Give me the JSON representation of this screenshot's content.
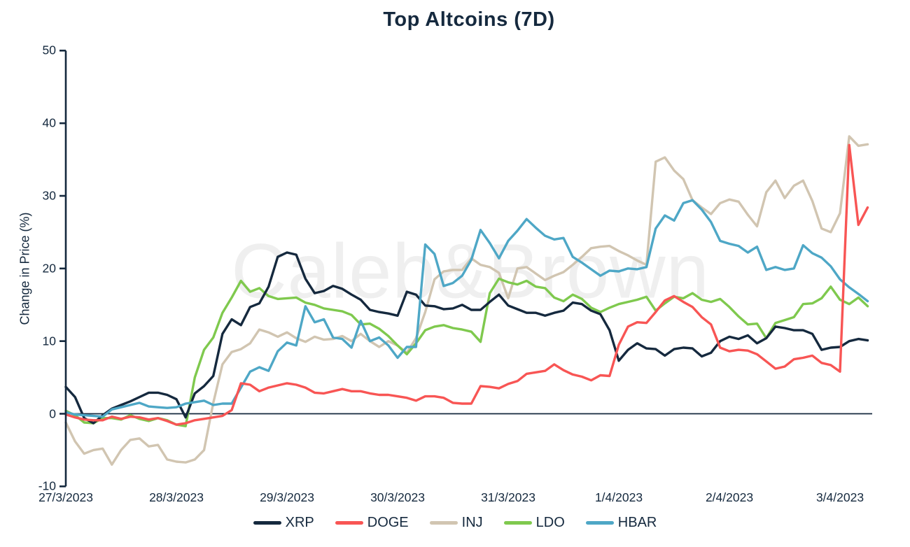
{
  "watermark": "Caleb&Brown",
  "theme": {
    "axis_color": "#15293e",
    "background": "#ffffff",
    "watermark_color": "#efefef"
  },
  "chart_data": {
    "type": "line",
    "title": "Top Altcoins (7D)",
    "xlabel": "",
    "ylabel": "Change in Price (%)",
    "ylim": [
      -10,
      50
    ],
    "grid": false,
    "zero_line": true,
    "legend_position": "bottom",
    "y_ticks": [
      50,
      40,
      30,
      20,
      10,
      0,
      -10
    ],
    "y_tick_labels": [
      "50",
      "40",
      "30",
      "20",
      "10",
      "0",
      "-10"
    ],
    "x_tick_labels": [
      "27/3/2023",
      "28/3/2023",
      "29/3/2023",
      "30/3/2023",
      "31/3/2023",
      "1/4/2023",
      "2/4/2023",
      "3/4/2023"
    ],
    "x_unit_hours": 2,
    "series": [
      {
        "name": "XRP",
        "color": "#15293e",
        "values": [
          3.7,
          2.3,
          -0.6,
          -1.3,
          -0.2,
          0.7,
          1.2,
          1.7,
          2.3,
          2.9,
          2.9,
          2.6,
          2.0,
          -0.5,
          2.8,
          3.8,
          5.2,
          11.0,
          13.0,
          12.2,
          14.7,
          15.2,
          17.5,
          21.6,
          22.2,
          21.9,
          18.6,
          16.6,
          16.9,
          17.6,
          17.2,
          16.4,
          15.7,
          14.3,
          14.0,
          13.8,
          13.5,
          16.8,
          16.4,
          14.9,
          14.8,
          14.4,
          14.5,
          15.0,
          14.3,
          14.3,
          15.4,
          16.4,
          14.9,
          14.4,
          13.9,
          13.9,
          13.5,
          13.9,
          14.2,
          15.3,
          15.1,
          14.2,
          13.7,
          11.5,
          7.3,
          8.8,
          9.7,
          9.0,
          8.9,
          8.0,
          8.9,
          9.1,
          9.0,
          7.9,
          8.4,
          10.0,
          10.6,
          10.3,
          10.8,
          9.7,
          10.4,
          12.0,
          11.8,
          11.5,
          11.5,
          11.0,
          8.8,
          9.1,
          9.2,
          10.0,
          10.3,
          10.1
        ]
      },
      {
        "name": "DOGE",
        "color": "#f85554",
        "values": [
          -0.1,
          -0.5,
          -0.8,
          -0.9,
          -0.9,
          -0.4,
          -0.7,
          -0.4,
          -0.5,
          -0.8,
          -0.6,
          -1.0,
          -1.5,
          -1.3,
          -0.9,
          -0.7,
          -0.5,
          -0.3,
          0.5,
          4.2,
          4.0,
          3.1,
          3.6,
          3.9,
          4.2,
          4.0,
          3.6,
          2.9,
          2.8,
          3.1,
          3.4,
          3.1,
          3.1,
          2.8,
          2.6,
          2.6,
          2.4,
          2.2,
          1.8,
          2.4,
          2.4,
          2.2,
          1.5,
          1.4,
          1.4,
          3.8,
          3.7,
          3.5,
          4.1,
          4.5,
          5.5,
          5.7,
          5.9,
          6.8,
          6.0,
          5.4,
          5.1,
          4.6,
          5.3,
          5.2,
          9.5,
          12.0,
          12.6,
          12.5,
          14.0,
          15.6,
          16.2,
          15.4,
          14.7,
          13.3,
          12.3,
          9.1,
          8.6,
          8.8,
          8.7,
          8.2,
          7.2,
          6.2,
          6.5,
          7.5,
          7.7,
          8.0,
          7.0,
          6.7,
          5.8,
          37.0,
          26.0,
          28.4
        ]
      },
      {
        "name": "INJ",
        "color": "#d1c5b1",
        "values": [
          -1.2,
          -3.8,
          -5.5,
          -5.0,
          -4.8,
          -7.0,
          -5.0,
          -3.6,
          -3.4,
          -4.5,
          -4.3,
          -6.3,
          -6.6,
          -6.7,
          -6.3,
          -5.0,
          1.5,
          6.8,
          8.5,
          8.9,
          9.7,
          11.6,
          11.2,
          10.6,
          11.2,
          10.4,
          9.9,
          10.6,
          10.2,
          10.3,
          10.7,
          10.0,
          11.0,
          10.0,
          9.2,
          10.0,
          9.4,
          8.4,
          10.4,
          14.0,
          18.5,
          19.6,
          19.8,
          19.8,
          21.4,
          20.5,
          20.2,
          19.4,
          15.9,
          20.0,
          20.2,
          19.3,
          18.4,
          19.0,
          19.5,
          20.5,
          21.6,
          22.8,
          23.0,
          23.1,
          22.4,
          21.8,
          21.1,
          20.5,
          34.7,
          35.3,
          33.5,
          32.3,
          29.4,
          28.4,
          27.5,
          29.0,
          29.5,
          29.2,
          27.4,
          25.8,
          30.5,
          32.1,
          29.7,
          31.4,
          32.1,
          29.3,
          25.5,
          25.0,
          27.6,
          38.2,
          36.9,
          37.1
        ]
      },
      {
        "name": "LDO",
        "color": "#7fc94e",
        "values": [
          0.4,
          -0.2,
          -1.2,
          -1.3,
          -0.6,
          -0.6,
          -0.8,
          -0.2,
          -0.7,
          -1.0,
          -0.6,
          -0.9,
          -1.5,
          -1.7,
          5.0,
          8.8,
          10.5,
          13.9,
          16.0,
          18.3,
          16.8,
          17.3,
          16.2,
          15.8,
          15.9,
          16.0,
          15.3,
          15.0,
          14.5,
          14.3,
          14.1,
          13.6,
          12.3,
          12.4,
          11.7,
          10.7,
          9.4,
          8.2,
          9.7,
          11.5,
          12.0,
          12.2,
          11.8,
          11.6,
          11.3,
          9.9,
          16.6,
          18.6,
          18.1,
          17.8,
          18.3,
          17.5,
          17.3,
          16.0,
          15.5,
          16.4,
          15.8,
          14.6,
          14.0,
          14.6,
          15.1,
          15.4,
          15.7,
          16.1,
          14.2,
          15.2,
          16.1,
          15.9,
          16.6,
          15.7,
          15.4,
          15.8,
          14.7,
          13.4,
          12.3,
          12.4,
          10.4,
          12.5,
          12.9,
          13.3,
          15.1,
          15.2,
          15.9,
          17.5,
          15.7,
          15.1,
          16.0,
          14.8
        ]
      },
      {
        "name": "HBAR",
        "color": "#4ea7c6",
        "values": [
          0.2,
          -0.1,
          -0.2,
          -0.3,
          -0.4,
          0.6,
          0.9,
          1.2,
          1.5,
          1.0,
          0.9,
          0.8,
          0.9,
          1.4,
          1.6,
          1.8,
          1.2,
          1.4,
          1.4,
          3.6,
          5.8,
          6.4,
          5.9,
          8.6,
          9.8,
          9.4,
          14.8,
          12.6,
          13.0,
          10.5,
          10.3,
          9.1,
          12.8,
          10.0,
          10.5,
          9.4,
          7.7,
          9.2,
          9.2,
          23.3,
          22.0,
          17.6,
          18.0,
          19.0,
          21.2,
          25.3,
          23.5,
          21.4,
          23.8,
          25.2,
          26.8,
          25.6,
          24.5,
          24.0,
          24.2,
          21.6,
          20.8,
          19.9,
          19.0,
          19.7,
          19.6,
          20.0,
          19.9,
          20.2,
          25.5,
          27.3,
          26.6,
          29.0,
          29.4,
          28.1,
          26.4,
          23.8,
          23.4,
          23.1,
          22.2,
          23.0,
          19.8,
          20.2,
          19.8,
          20.0,
          23.2,
          22.1,
          21.5,
          20.3,
          18.5,
          17.4,
          16.5,
          15.5
        ]
      }
    ]
  }
}
